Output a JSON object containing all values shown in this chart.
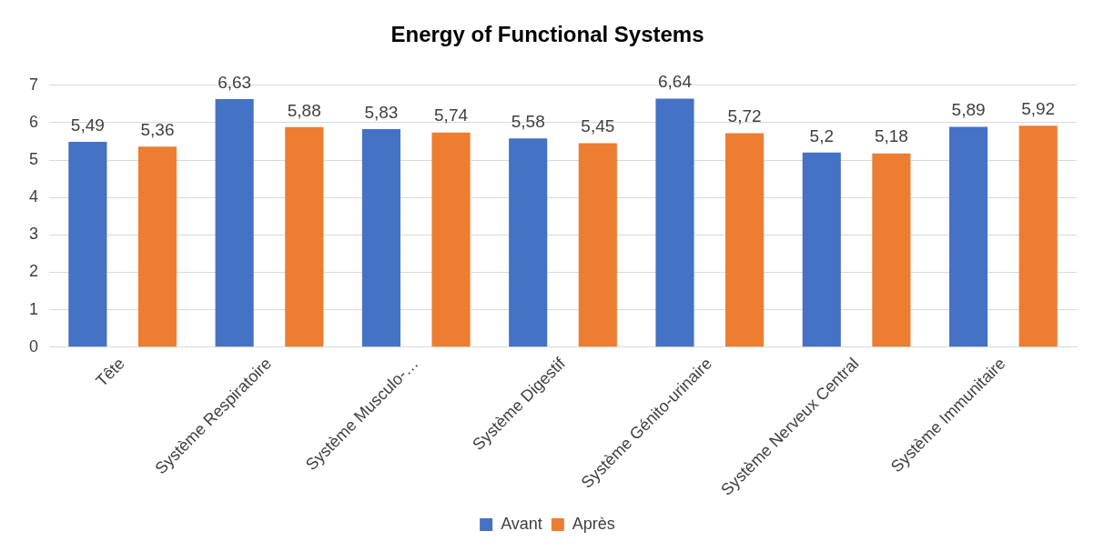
{
  "chart_data": {
    "type": "bar",
    "title": "Energy of Functional Systems",
    "categories": [
      "Tête",
      "Système Respiratoire",
      "Système Musculo-…",
      "Système Digestif",
      "Système Génito-urinaire",
      "Système Nerveux Central",
      "Système Immunitaire"
    ],
    "series": [
      {
        "name": "Avant",
        "color": "#4472c4",
        "values": [
          5.49,
          6.63,
          5.83,
          5.58,
          6.64,
          5.2,
          5.89
        ],
        "value_labels": [
          "5,49",
          "6,63",
          "5,83",
          "5,58",
          "6,64",
          "5,2",
          "5,89"
        ]
      },
      {
        "name": "Après",
        "color": "#ed7d31",
        "values": [
          5.36,
          5.88,
          5.74,
          5.45,
          5.72,
          5.18,
          5.92
        ],
        "value_labels": [
          "5,36",
          "5,88",
          "5,74",
          "5,45",
          "5,72",
          "5,18",
          "5,92"
        ]
      }
    ],
    "ylim": [
      0,
      7
    ],
    "yticks": [
      0,
      1,
      2,
      3,
      4,
      5,
      6,
      7
    ],
    "grid": "y",
    "legend": "bottom"
  }
}
